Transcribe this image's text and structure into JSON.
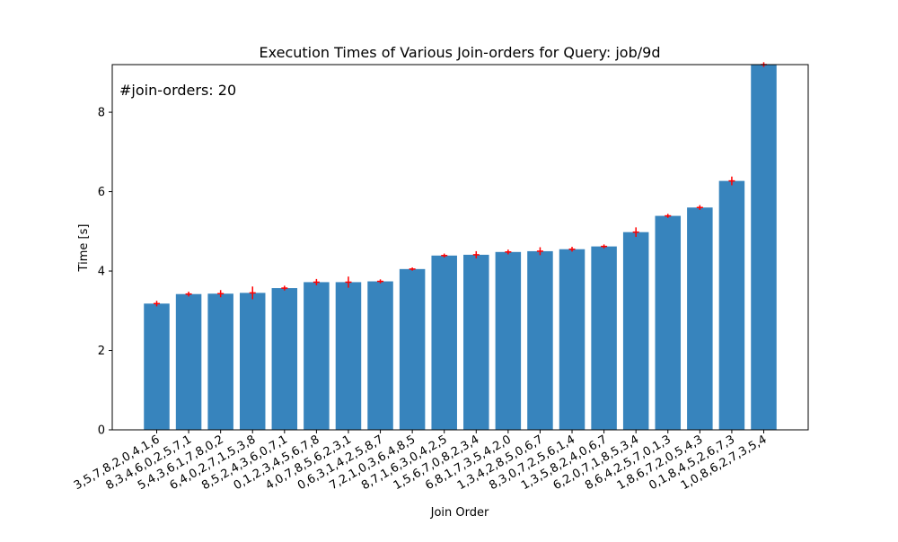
{
  "chart_data": {
    "type": "bar",
    "title": "Execution Times of Various Join-orders for Query: job/9d",
    "xlabel": "Join Order",
    "ylabel": "Time [s]",
    "annotation": "#join-orders: 20",
    "ylim": [
      0,
      9.2
    ],
    "yticks": [
      "0",
      "2",
      "4",
      "6",
      "8"
    ],
    "bar_color": "#3784bd",
    "error_color": "#ff0000",
    "categories": [
      "3,5,7,8,2,0,4,1,6",
      "8,3,4,6,0,2,5,7,1",
      "5,4,3,6,1,7,8,0,2",
      "6,4,0,2,7,1,5,3,8",
      "8,5,2,4,3,6,0,7,1",
      "0,1,2,3,4,5,6,7,8",
      "4,0,7,8,5,6,2,3,1",
      "0,6,3,1,4,2,5,8,7",
      "7,2,1,0,3,6,4,8,5",
      "8,7,1,6,3,0,4,2,5",
      "1,5,6,7,0,8,2,3,4",
      "6,8,1,7,3,5,4,2,0",
      "1,3,4,2,8,5,0,6,7",
      "8,3,0,7,2,5,6,1,4",
      "1,3,5,8,2,4,0,6,7",
      "6,2,0,7,1,8,5,3,4",
      "8,6,4,2,5,7,0,1,3",
      "1,8,6,7,2,0,5,4,3",
      "0,1,8,4,5,2,6,7,3",
      "1,0,8,6,2,7,3,5,4"
    ],
    "values": [
      3.18,
      3.42,
      3.43,
      3.45,
      3.57,
      3.72,
      3.72,
      3.74,
      4.05,
      4.39,
      4.41,
      4.48,
      4.5,
      4.55,
      4.62,
      4.98,
      5.39,
      5.6,
      6.27,
      9.2
    ],
    "errors": [
      0.07,
      0.06,
      0.09,
      0.16,
      0.06,
      0.08,
      0.14,
      0.05,
      0.04,
      0.05,
      0.09,
      0.06,
      0.1,
      0.06,
      0.05,
      0.12,
      0.05,
      0.06,
      0.11,
      0.06
    ]
  }
}
